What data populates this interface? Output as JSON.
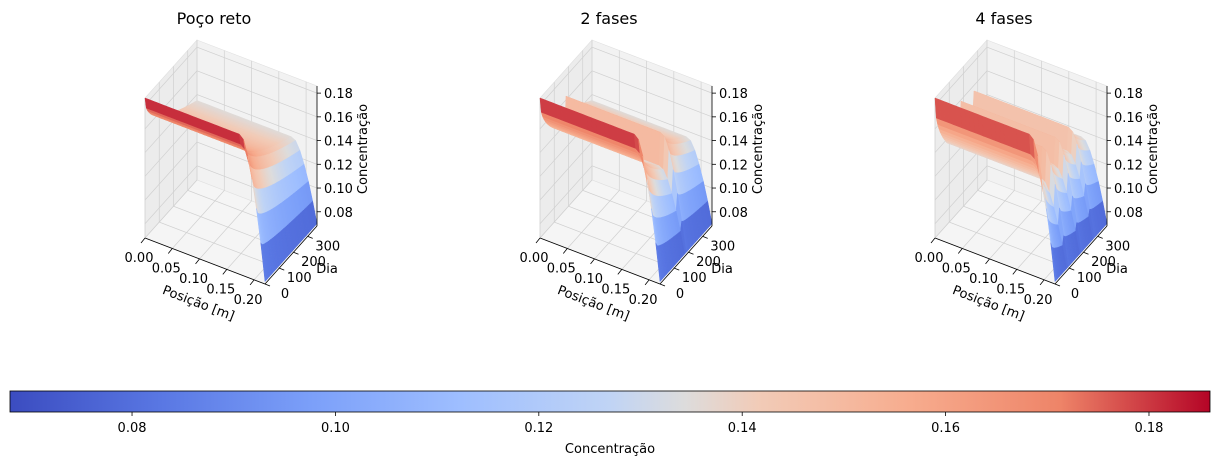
{
  "figure": {
    "colorbar": {
      "label": "Concentração",
      "ticks": [
        "0.08",
        "0.10",
        "0.12",
        "0.14",
        "0.16",
        "0.18"
      ],
      "range": [
        0.068,
        0.186
      ],
      "colormap": "coolwarm"
    }
  },
  "chart_data": [
    {
      "type": "surface",
      "title": "Poço reto",
      "xlabel": "Posição [m]",
      "ylabel": "Dia",
      "zlabel": "Concentração",
      "xticks": [
        "0.00",
        "0.05",
        "0.10",
        "0.15",
        "0.20"
      ],
      "yticks": [
        "0",
        "100",
        "200",
        "300"
      ],
      "zticks": [
        "0.08",
        "0.10",
        "0.12",
        "0.14",
        "0.16",
        "0.18"
      ],
      "xlim": [
        0,
        0.22
      ],
      "ylim": [
        0,
        365
      ],
      "zlim": [
        0.068,
        0.186
      ],
      "phases": 1,
      "z_max": 0.186,
      "z_mid": 0.135,
      "z_min": 0.07
    },
    {
      "type": "surface",
      "title": "2 fases",
      "xlabel": "Posição [m]",
      "ylabel": "Dia",
      "zlabel": "Concentração",
      "xticks": [
        "0.00",
        "0.05",
        "0.10",
        "0.15",
        "0.20"
      ],
      "yticks": [
        "0",
        "100",
        "200",
        "300"
      ],
      "zticks": [
        "0.08",
        "0.10",
        "0.12",
        "0.14",
        "0.16",
        "0.18"
      ],
      "xlim": [
        0,
        0.22
      ],
      "ylim": [
        0,
        365
      ],
      "zlim": [
        0.068,
        0.186
      ],
      "phases": 2,
      "z_max": 0.186,
      "z_mid": 0.135,
      "z_min": 0.07
    },
    {
      "type": "surface",
      "title": "4 fases",
      "xlabel": "Posição [m]",
      "ylabel": "Dia",
      "zlabel": "Concentração",
      "xticks": [
        "0.00",
        "0.05",
        "0.10",
        "0.15",
        "0.20"
      ],
      "yticks": [
        "0",
        "100",
        "200",
        "300"
      ],
      "zticks": [
        "0.08",
        "0.10",
        "0.12",
        "0.14",
        "0.16",
        "0.18"
      ],
      "xlim": [
        0,
        0.22
      ],
      "ylim": [
        0,
        365
      ],
      "zlim": [
        0.068,
        0.186
      ],
      "phases": 4,
      "z_max": 0.186,
      "z_mid": 0.135,
      "z_min": 0.07
    }
  ]
}
